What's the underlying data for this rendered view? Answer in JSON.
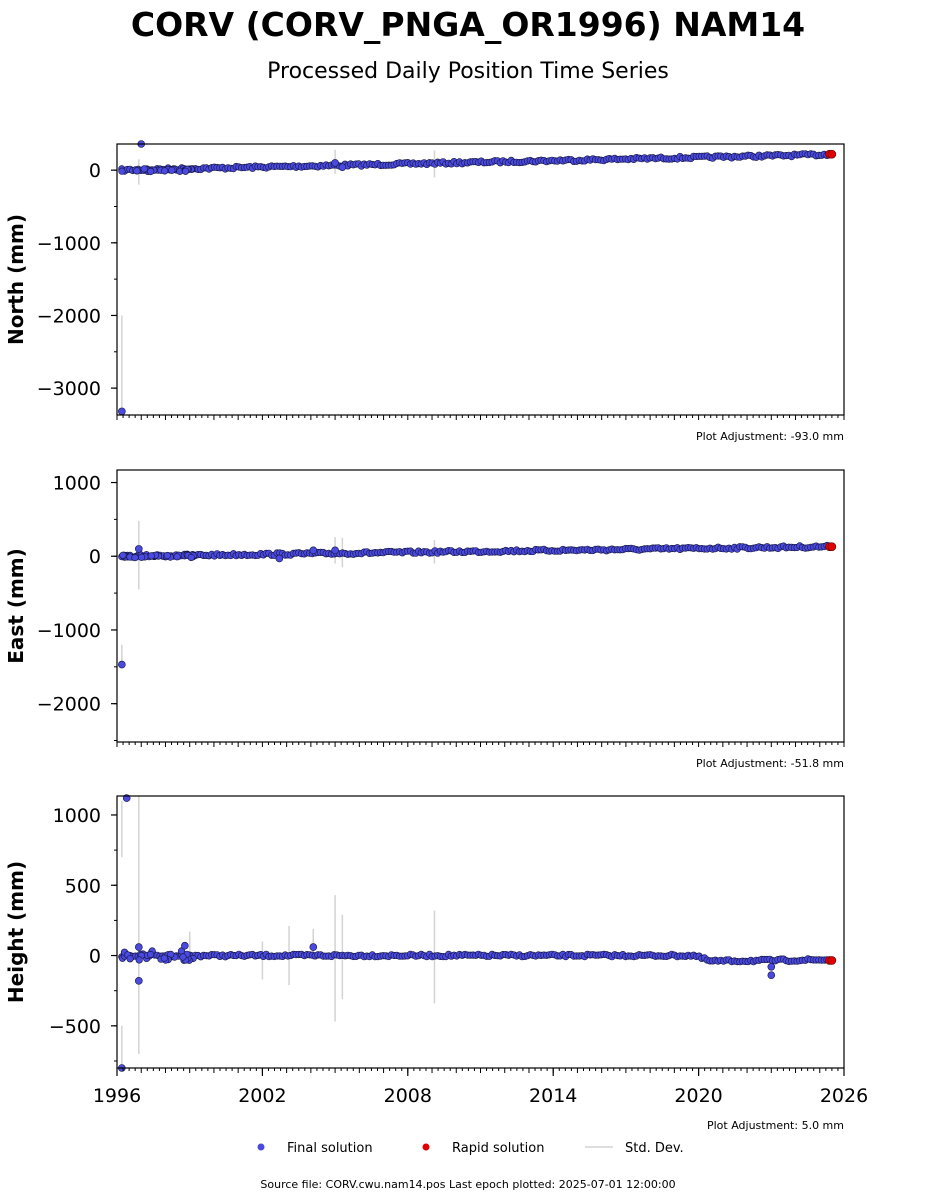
{
  "title": "CORV (CORV_PNGA_OR1996) NAM14",
  "subtitle": "Processed Daily Position Time Series",
  "source_text": "Source file: CORV.cwu.nam14.pos  Last epoch plotted: 2025-07-01 12:00:00",
  "colors": {
    "final": "#4a4ae0",
    "final_edge": "#14143c",
    "rapid": "#e00000",
    "stddev": "#d3d3d3"
  },
  "legend": [
    {
      "label": "Final solution",
      "marker": "dot",
      "color": "#4a4ae0"
    },
    {
      "label": "Rapid solution",
      "marker": "dot",
      "color": "#e00000"
    },
    {
      "label": "Std. Dev.",
      "marker": "line",
      "color": "#d3d3d3"
    }
  ],
  "chart_data": [
    {
      "type": "scatter",
      "ylabel": "North (mm)",
      "adjustment": "Plot Adjustment: -93.0 mm",
      "xlim": [
        1996,
        2026
      ],
      "ylim": [
        -3370,
        360
      ],
      "yticks": [
        0,
        -1000,
        -2000,
        -3000
      ],
      "yticklabels": [
        "0",
        "−1000",
        "−2000",
        "−3000"
      ],
      "trend": {
        "x": [
          1996.2,
          2025.3
        ],
        "y": [
          0,
          215
        ]
      },
      "final_outliers": [
        {
          "x": 1996.2,
          "y": -3320
        },
        {
          "x": 1997.0,
          "y": 360
        },
        {
          "x": 2005.0,
          "y": 100
        },
        {
          "x": 2005.3,
          "y": 40
        }
      ],
      "rapid": [
        {
          "x": 2025.4,
          "y": 220
        },
        {
          "x": 2025.5,
          "y": 220
        }
      ],
      "stddev_bars": [
        {
          "x": 1996.2,
          "y0": -3350,
          "y1": -2000
        },
        {
          "x": 1996.9,
          "y0": -200,
          "y1": 150
        },
        {
          "x": 2005.0,
          "y0": -50,
          "y1": 280
        },
        {
          "x": 2009.1,
          "y0": -100,
          "y1": 270
        }
      ]
    },
    {
      "type": "scatter",
      "ylabel": "East (mm)",
      "adjustment": "Plot Adjustment: -51.8 mm",
      "xlim": [
        1996,
        2026
      ],
      "ylim": [
        -2520,
        1170
      ],
      "yticks": [
        1000,
        0,
        -1000,
        -2000
      ],
      "yticklabels": [
        "1000",
        "0",
        "−1000",
        "−2000"
      ],
      "trend": {
        "x": [
          1996.2,
          2025.3
        ],
        "y": [
          0,
          130
        ]
      },
      "final_outliers": [
        {
          "x": 1996.2,
          "y": -1470
        },
        {
          "x": 1996.9,
          "y": 100
        },
        {
          "x": 2002.7,
          "y": -30
        },
        {
          "x": 2004.1,
          "y": 80
        },
        {
          "x": 2005.0,
          "y": 80
        }
      ],
      "rapid": [
        {
          "x": 2025.4,
          "y": 130
        },
        {
          "x": 2025.5,
          "y": 130
        }
      ],
      "stddev_bars": [
        {
          "x": 1996.2,
          "y0": -1480,
          "y1": -1200
        },
        {
          "x": 1996.9,
          "y0": -450,
          "y1": 480
        },
        {
          "x": 2005.0,
          "y0": -100,
          "y1": 260
        },
        {
          "x": 2005.3,
          "y0": -150,
          "y1": 250
        },
        {
          "x": 2009.1,
          "y0": -100,
          "y1": 220
        }
      ]
    },
    {
      "type": "scatter",
      "ylabel": "Height (mm)",
      "adjustment": "Plot Adjustment: 5.0 mm",
      "xlim": [
        1996,
        2026
      ],
      "ylim": [
        -800,
        1135
      ],
      "yticks": [
        1000,
        500,
        0,
        -500
      ],
      "yticklabels": [
        "1000",
        "500",
        "0",
        "−500"
      ],
      "xticks": [
        1996,
        2002,
        2008,
        2014,
        2020,
        2026
      ],
      "xticklabels": [
        "1996",
        "2002",
        "2008",
        "2014",
        "2020",
        "2026"
      ],
      "baseline": {
        "x": [
          1996.2,
          2019.8,
          2020.5,
          2025.3
        ],
        "y": [
          0,
          0,
          -40,
          -30
        ]
      },
      "final_outliers": [
        {
          "x": 1996.2,
          "y": -800
        },
        {
          "x": 1996.4,
          "y": 1120
        },
        {
          "x": 1996.9,
          "y": -180
        },
        {
          "x": 1996.9,
          "y": 60
        },
        {
          "x": 1998.8,
          "y": 70
        },
        {
          "x": 2004.1,
          "y": 60
        },
        {
          "x": 2023.0,
          "y": -140
        },
        {
          "x": 2023.0,
          "y": -80
        }
      ],
      "rapid": [
        {
          "x": 2025.4,
          "y": -35
        },
        {
          "x": 2025.5,
          "y": -35
        }
      ],
      "stddev_bars": [
        {
          "x": 1996.2,
          "y0": -800,
          "y1": -500
        },
        {
          "x": 1996.2,
          "y0": 700,
          "y1": 1100
        },
        {
          "x": 1996.9,
          "y0": -700,
          "y1": 1135
        },
        {
          "x": 1999.0,
          "y0": -40,
          "y1": 170
        },
        {
          "x": 2002.0,
          "y0": -170,
          "y1": 100
        },
        {
          "x": 2003.1,
          "y0": -210,
          "y1": 210
        },
        {
          "x": 2004.1,
          "y0": -30,
          "y1": 190
        },
        {
          "x": 2005.0,
          "y0": -470,
          "y1": 430
        },
        {
          "x": 2005.3,
          "y0": -310,
          "y1": 290
        },
        {
          "x": 2009.1,
          "y0": -340,
          "y1": 320
        }
      ]
    }
  ]
}
